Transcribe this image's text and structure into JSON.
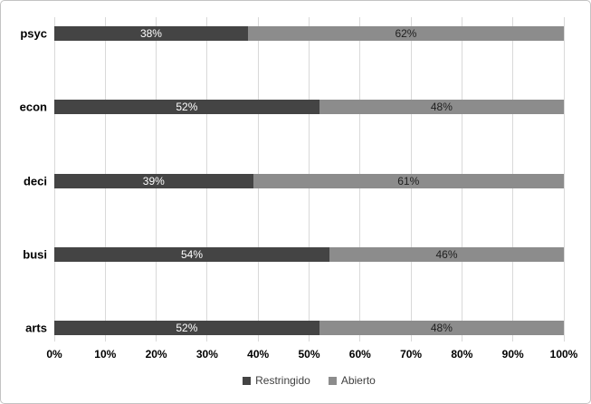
{
  "chart_data": {
    "type": "bar",
    "orientation": "horizontal",
    "stacked": true,
    "categories": [
      "psyc",
      "econ",
      "deci",
      "busi",
      "arts"
    ],
    "series": [
      {
        "name": "Restringido",
        "color": "#444444",
        "label_color": "#ffffff",
        "values": [
          38,
          52,
          39,
          54,
          52
        ],
        "labels": [
          "38%",
          "52%",
          "39%",
          "54%",
          "52%"
        ]
      },
      {
        "name": "Abierto",
        "color": "#8c8c8c",
        "label_color": "#1f1f1f",
        "values": [
          62,
          48,
          61,
          46,
          48
        ],
        "labels": [
          "62%",
          "48%",
          "61%",
          "46%",
          "48%"
        ]
      }
    ],
    "x_ticks": [
      "0%",
      "10%",
      "20%",
      "30%",
      "40%",
      "50%",
      "60%",
      "70%",
      "80%",
      "90%",
      "100%"
    ],
    "x_tick_values": [
      0,
      10,
      20,
      30,
      40,
      50,
      60,
      70,
      80,
      90,
      100
    ],
    "xlim": [
      0,
      100
    ],
    "grid": "vertical",
    "gridline_color": "#d9d9d9",
    "legend_position": "bottom",
    "title": "",
    "xlabel": "",
    "ylabel": ""
  },
  "legend": {
    "items": [
      {
        "label": "Restringido",
        "color": "#444444"
      },
      {
        "label": "Abierto",
        "color": "#8c8c8c"
      }
    ]
  }
}
